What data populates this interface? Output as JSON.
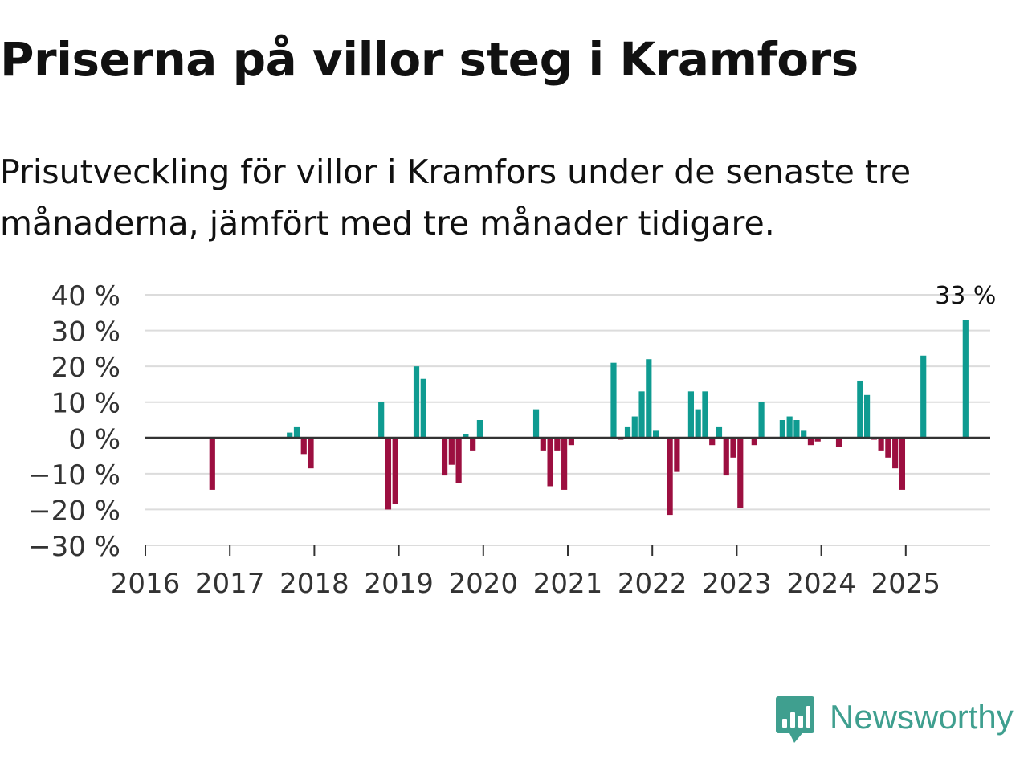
{
  "header": {
    "title": "Priserna på villor steg i Kramfors",
    "subtitle": "Prisutveckling för villor i Kramfors under de senaste tre månaderna, jämfört med tre månader tidigare."
  },
  "colors": {
    "positive": "#0f9b91",
    "negative": "#9c0f40",
    "grid": "#dcdcdc",
    "zero_line": "#333333",
    "brand": "#3f9f8f"
  },
  "brand": {
    "name": "Newsworthy",
    "icon": "newsworthy-logo-icon"
  },
  "chart_data": {
    "type": "bar",
    "title": "Priserna på villor steg i Kramfors",
    "subtitle": "Prisutveckling för villor i Kramfors under de senaste tre månaderna, jämfört med tre månader tidigare.",
    "xlabel": "",
    "ylabel": "",
    "unit": "%",
    "ylim": [
      -30,
      40
    ],
    "xlim": [
      "2016-01",
      "2026-01"
    ],
    "grid": true,
    "y_ticks": [
      {
        "value": 40,
        "label": "40 %"
      },
      {
        "value": 30,
        "label": "30 %"
      },
      {
        "value": 20,
        "label": "20 %"
      },
      {
        "value": 10,
        "label": "10 %"
      },
      {
        "value": 0,
        "label": "0 %"
      },
      {
        "value": -10,
        "label": "−10 %"
      },
      {
        "value": -20,
        "label": "−20 %"
      },
      {
        "value": -30,
        "label": "−30 %"
      }
    ],
    "x_ticks": [
      "2016",
      "2017",
      "2018",
      "2019",
      "2020",
      "2021",
      "2022",
      "2023",
      "2024",
      "2025"
    ],
    "annotation": {
      "month": "2025-09",
      "label": "33 %"
    },
    "series": [
      {
        "name": "Prisutveckling",
        "values": [
          {
            "month": "2016-10",
            "value": -14.5
          },
          {
            "month": "2017-09",
            "value": 1.5
          },
          {
            "month": "2017-10",
            "value": 3
          },
          {
            "month": "2017-11",
            "value": -4.5
          },
          {
            "month": "2017-12",
            "value": -8.5
          },
          {
            "month": "2018-10",
            "value": 10
          },
          {
            "month": "2018-11",
            "value": -20
          },
          {
            "month": "2018-12",
            "value": -18.5
          },
          {
            "month": "2019-03",
            "value": 20
          },
          {
            "month": "2019-04",
            "value": 16.5
          },
          {
            "month": "2019-07",
            "value": -10.5
          },
          {
            "month": "2019-08",
            "value": -7.5
          },
          {
            "month": "2019-09",
            "value": -12.5
          },
          {
            "month": "2019-10",
            "value": 1
          },
          {
            "month": "2019-11",
            "value": -3.5
          },
          {
            "month": "2019-12",
            "value": 5
          },
          {
            "month": "2020-08",
            "value": 8
          },
          {
            "month": "2020-09",
            "value": -3.5
          },
          {
            "month": "2020-10",
            "value": -13.5
          },
          {
            "month": "2020-11",
            "value": -3.5
          },
          {
            "month": "2020-12",
            "value": -14.5
          },
          {
            "month": "2021-01",
            "value": -2
          },
          {
            "month": "2021-07",
            "value": 21
          },
          {
            "month": "2021-08",
            "value": -0.5
          },
          {
            "month": "2021-09",
            "value": 3
          },
          {
            "month": "2021-10",
            "value": 6
          },
          {
            "month": "2021-11",
            "value": 13
          },
          {
            "month": "2021-12",
            "value": 22
          },
          {
            "month": "2022-01",
            "value": 2
          },
          {
            "month": "2022-03",
            "value": -21.5
          },
          {
            "month": "2022-04",
            "value": -9.5
          },
          {
            "month": "2022-06",
            "value": 13
          },
          {
            "month": "2022-07",
            "value": 8
          },
          {
            "month": "2022-08",
            "value": 13
          },
          {
            "month": "2022-09",
            "value": -2
          },
          {
            "month": "2022-10",
            "value": 3
          },
          {
            "month": "2022-11",
            "value": -10.5
          },
          {
            "month": "2022-12",
            "value": -5.5
          },
          {
            "month": "2023-01",
            "value": -19.5
          },
          {
            "month": "2023-03",
            "value": -2
          },
          {
            "month": "2023-04",
            "value": 10
          },
          {
            "month": "2023-07",
            "value": 5
          },
          {
            "month": "2023-08",
            "value": 6
          },
          {
            "month": "2023-09",
            "value": 5
          },
          {
            "month": "2023-10",
            "value": 2
          },
          {
            "month": "2023-11",
            "value": -2
          },
          {
            "month": "2023-12",
            "value": -1
          },
          {
            "month": "2024-03",
            "value": -2.5
          },
          {
            "month": "2024-06",
            "value": 16
          },
          {
            "month": "2024-07",
            "value": 12
          },
          {
            "month": "2024-08",
            "value": -0.5
          },
          {
            "month": "2024-09",
            "value": -3.5
          },
          {
            "month": "2024-10",
            "value": -5.5
          },
          {
            "month": "2024-11",
            "value": -8.5
          },
          {
            "month": "2024-12",
            "value": -14.5
          },
          {
            "month": "2025-03",
            "value": 23
          },
          {
            "month": "2025-09",
            "value": 33
          }
        ]
      }
    ]
  }
}
